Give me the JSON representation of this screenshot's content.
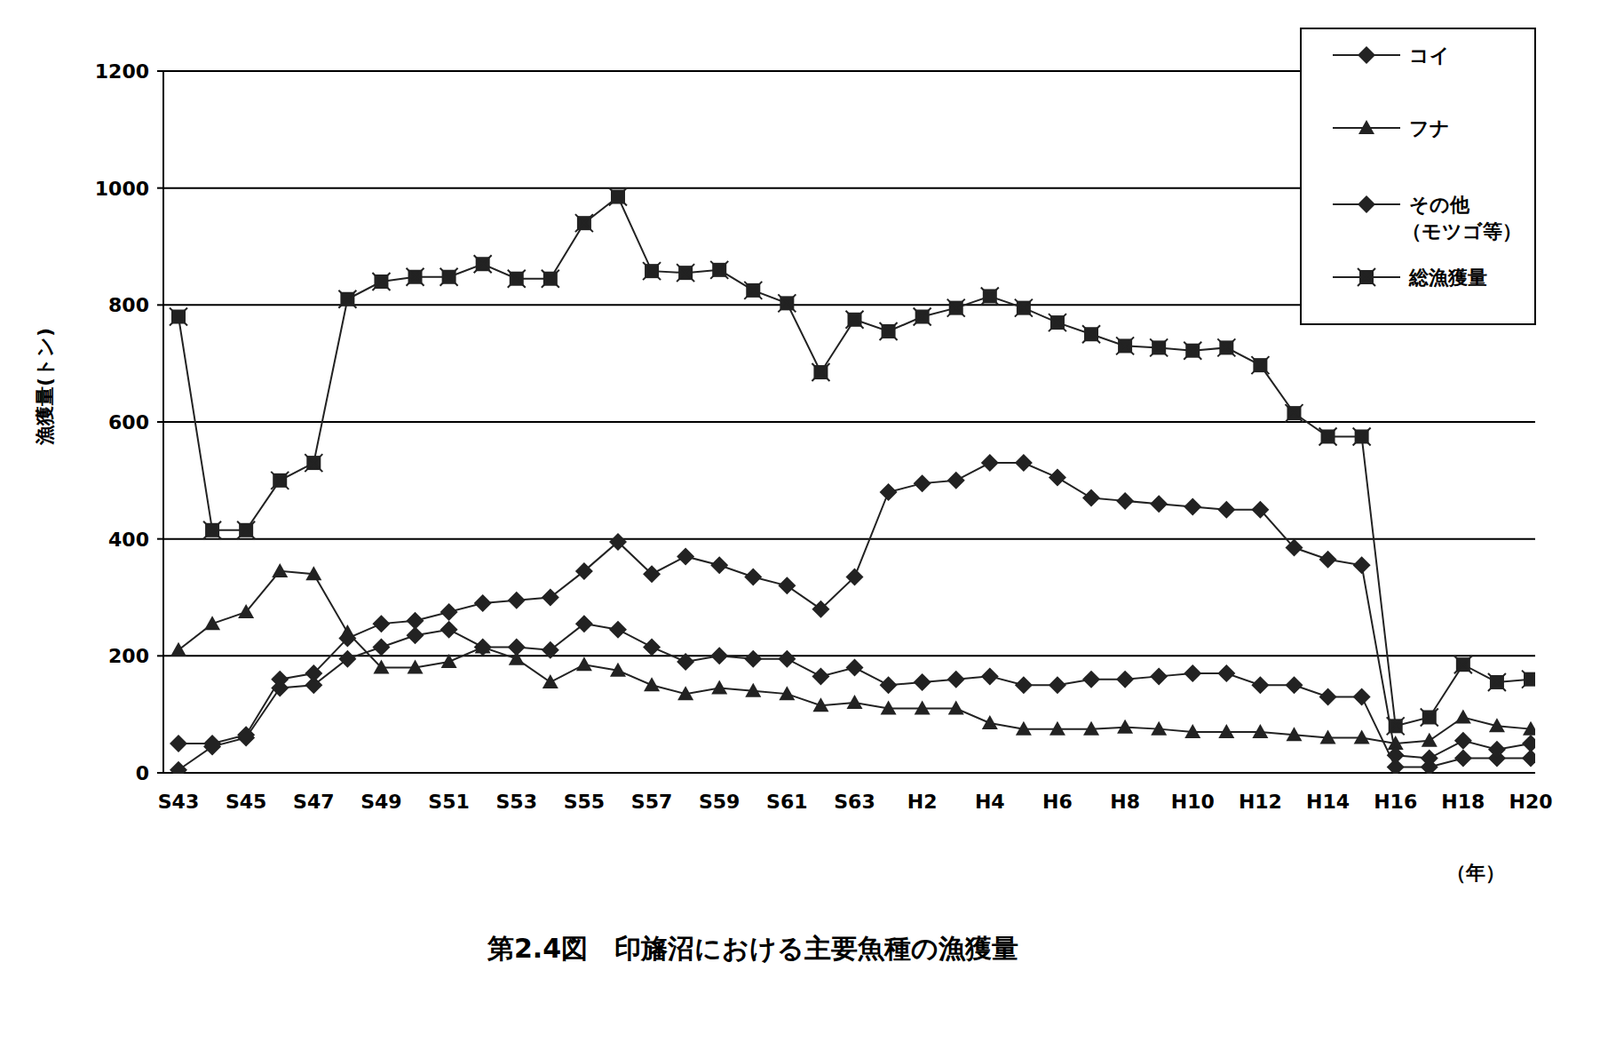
{
  "chart_data": {
    "type": "line",
    "title": "第2.4図　印旛沼における主要魚種の漁獲量",
    "x_label": "（年）",
    "y_label": "漁獲量(トン)",
    "categories": [
      "S43",
      null,
      "S45",
      null,
      "S47",
      null,
      "S49",
      null,
      "S51",
      null,
      "S53",
      null,
      "S55",
      null,
      "S57",
      null,
      "S59",
      null,
      "S61",
      null,
      "S63",
      null,
      "H2",
      null,
      "H4",
      null,
      "H6",
      null,
      "H8",
      null,
      "H10",
      null,
      "H12",
      null,
      "H14",
      null,
      "H16",
      null,
      "H18",
      null,
      "H20"
    ],
    "series": [
      {
        "name": "コイ",
        "color": "#222222",
        "marker": "diamond",
        "values": [
          5,
          45,
          60,
          145,
          150,
          195,
          215,
          235,
          245,
          215,
          215,
          210,
          255,
          245,
          215,
          190,
          200,
          195,
          195,
          165,
          180,
          150,
          155,
          160,
          165,
          150,
          150,
          160,
          160,
          165,
          170,
          170,
          150,
          150,
          130,
          130,
          10,
          10,
          25,
          25,
          25
        ]
      },
      {
        "name": "フナ",
        "color": "#222222",
        "marker": "triangle",
        "values": [
          210,
          255,
          275,
          345,
          340,
          240,
          180,
          180,
          190,
          215,
          195,
          155,
          185,
          175,
          150,
          135,
          145,
          140,
          135,
          115,
          120,
          110,
          110,
          110,
          85,
          75,
          75,
          75,
          78,
          75,
          70,
          70,
          70,
          65,
          60,
          60,
          50,
          55,
          95,
          80,
          75
        ]
      },
      {
        "name": "その他（モツゴ等）",
        "color": "#222222",
        "marker": "diamond",
        "values": [
          50,
          50,
          65,
          160,
          170,
          230,
          255,
          260,
          275,
          290,
          295,
          300,
          345,
          395,
          340,
          370,
          355,
          335,
          320,
          280,
          335,
          480,
          495,
          500,
          530,
          530,
          505,
          470,
          465,
          460,
          455,
          450,
          450,
          385,
          365,
          355,
          30,
          25,
          55,
          40,
          50
        ]
      },
      {
        "name": "総漁獲量",
        "color": "#222222",
        "marker": "square",
        "values": [
          780,
          415,
          415,
          500,
          530,
          810,
          840,
          848,
          848,
          870,
          845,
          845,
          940,
          985,
          858,
          855,
          860,
          825,
          803,
          685,
          775,
          755,
          780,
          795,
          815,
          795,
          770,
          750,
          730,
          727,
          722,
          727,
          697,
          615,
          575,
          575,
          80,
          95,
          185,
          155,
          160
        ]
      }
    ],
    "ylim": [
      0,
      1200
    ],
    "yticks": [
      0,
      200,
      400,
      600,
      800,
      1000,
      1200
    ],
    "grid": true,
    "legend": "top-right"
  }
}
